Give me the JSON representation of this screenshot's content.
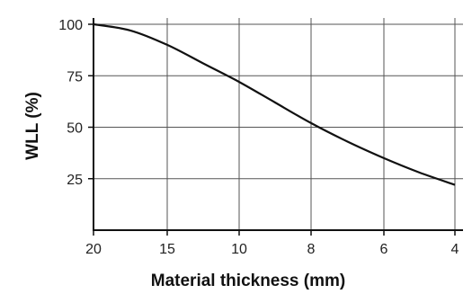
{
  "chart_data": {
    "type": "line",
    "xlabel": "Material thickness (mm)",
    "ylabel": "WLL (%)",
    "x_ticks": [
      "20",
      "15",
      "10",
      "8",
      "6",
      "4"
    ],
    "y_ticks": [
      "100",
      "75",
      "50",
      "25"
    ],
    "ylim": [
      0,
      100
    ],
    "grid": true,
    "series": [
      {
        "x": [
          "20",
          "17.5",
          "15",
          "12.5",
          "10",
          "9",
          "8",
          "7",
          "6",
          "5",
          "4"
        ],
        "values": [
          100,
          97,
          90,
          81,
          72,
          62,
          52,
          43,
          35,
          28,
          22
        ]
      }
    ],
    "colors": {
      "line": "#111111",
      "grid": "#555555",
      "axis": "#111111"
    }
  }
}
